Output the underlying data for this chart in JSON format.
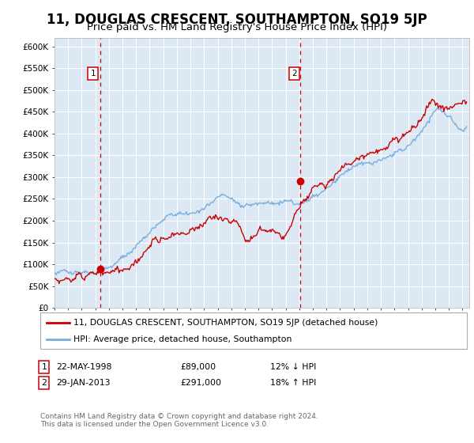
{
  "title": "11, DOUGLAS CRESCENT, SOUTHAMPTON, SO19 5JP",
  "subtitle": "Price paid vs. HM Land Registry's House Price Index (HPI)",
  "title_fontsize": 12,
  "subtitle_fontsize": 9.5,
  "legend_line1": "11, DOUGLAS CRESCENT, SOUTHAMPTON, SO19 5JP (detached house)",
  "legend_line2": "HPI: Average price, detached house, Southampton",
  "red_color": "#cc0000",
  "blue_color": "#7aaddb",
  "bg_color": "#dce9f5",
  "annotation1_date": "22-MAY-1998",
  "annotation1_price": "£89,000",
  "annotation1_hpi": "12% ↓ HPI",
  "annotation2_date": "29-JAN-2013",
  "annotation2_price": "£291,000",
  "annotation2_hpi": "18% ↑ HPI",
  "sale1_x": 1998.38,
  "sale1_y": 89000,
  "sale2_x": 2013.08,
  "sale2_y": 291000,
  "vline1_x": 1998.38,
  "vline2_x": 2013.08,
  "xmin": 1995.0,
  "xmax": 2025.5,
  "ymin": 0,
  "ymax": 620000,
  "yticks": [
    0,
    50000,
    100000,
    150000,
    200000,
    250000,
    300000,
    350000,
    400000,
    450000,
    500000,
    550000,
    600000
  ],
  "footer": "Contains HM Land Registry data © Crown copyright and database right 2024.\nThis data is licensed under the Open Government Licence v3.0."
}
